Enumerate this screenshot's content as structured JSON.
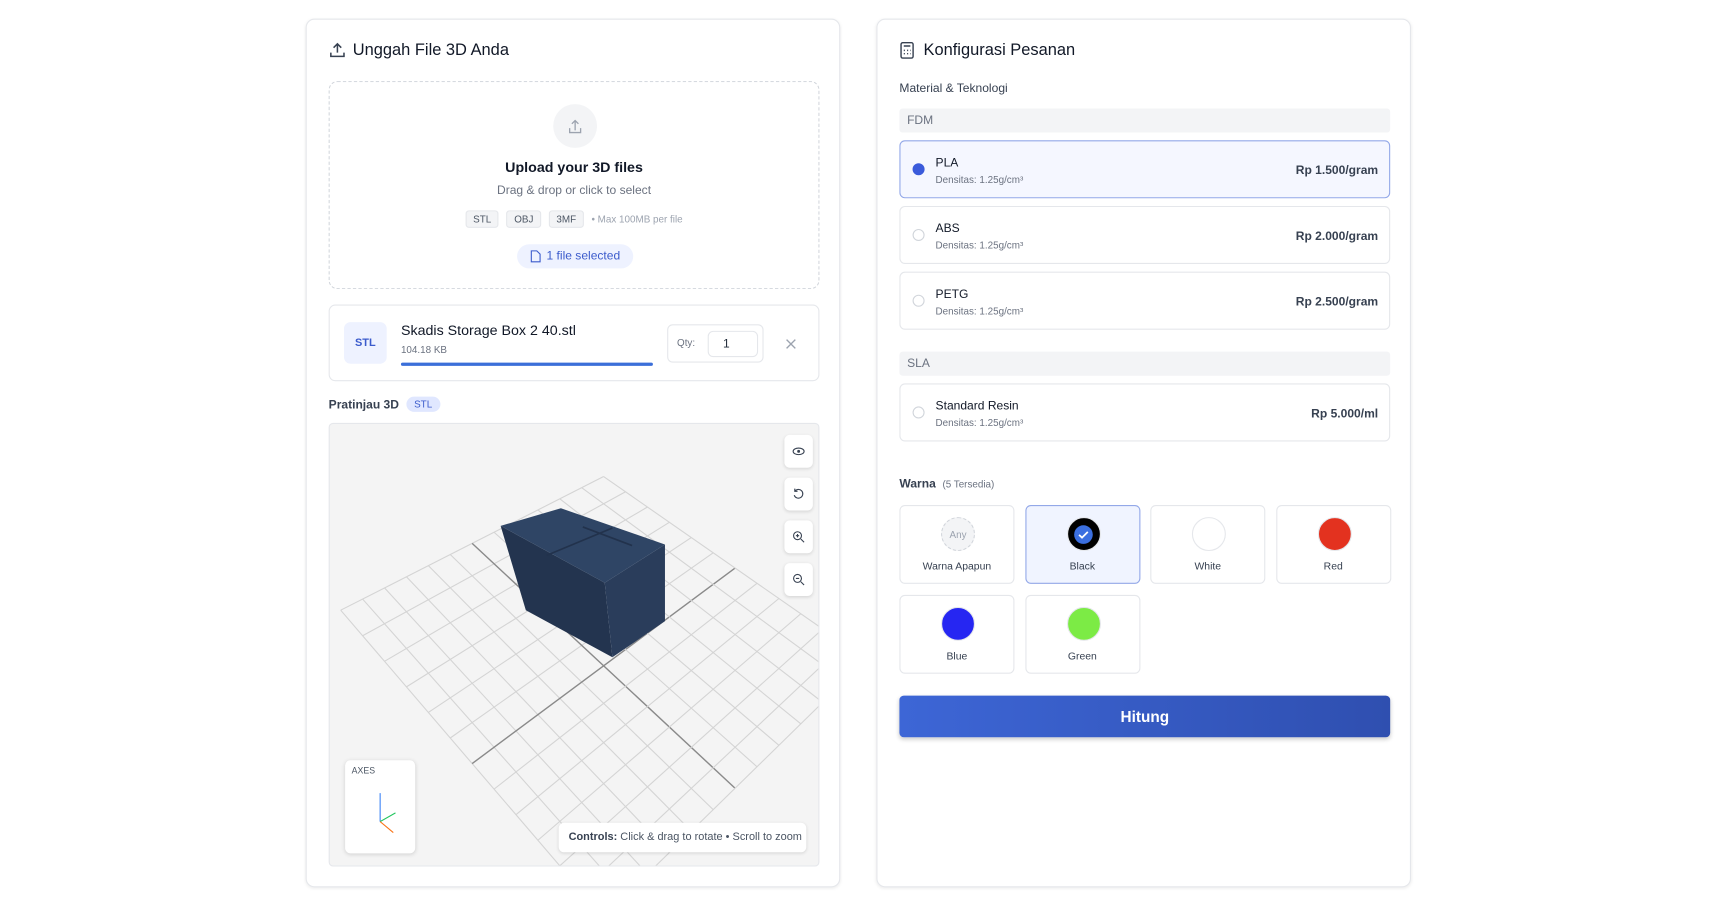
{
  "upload": {
    "title": "Unggah File 3D Anda",
    "dropzone": {
      "heading": "Upload your 3D files",
      "subtitle": "Drag & drop or click to select",
      "formats": [
        "STL",
        "OBJ",
        "3MF"
      ],
      "max_size": "• Max 100MB per file",
      "selected": "1 file selected"
    },
    "file": {
      "badge": "STL",
      "name": "Skadis Storage Box 2 40.stl",
      "size": "104.18 KB",
      "qty_label": "Qty:",
      "qty": 1
    },
    "preview": {
      "label": "Pratinjau 3D",
      "badge": "STL",
      "axes_label": "AXES",
      "controls_label": "Controls:",
      "controls_text": "Click & drag to rotate • Scroll to zoom"
    }
  },
  "config": {
    "title": "Konfigurasi Pesanan",
    "material_label": "Material & Teknologi",
    "groups": [
      {
        "name": "FDM",
        "materials": [
          {
            "name": "PLA",
            "density": "Densitas: 1.25g/cm³",
            "price": "Rp 1.500/gram",
            "selected": true
          },
          {
            "name": "ABS",
            "density": "Densitas: 1.25g/cm³",
            "price": "Rp 2.000/gram",
            "selected": false
          },
          {
            "name": "PETG",
            "density": "Densitas: 1.25g/cm³",
            "price": "Rp 2.500/gram",
            "selected": false
          }
        ]
      },
      {
        "name": "SLA",
        "materials": [
          {
            "name": "Standard Resin",
            "density": "Densitas: 1.25g/cm³",
            "price": "Rp 5.000/ml",
            "selected": false
          }
        ]
      }
    ],
    "color_label": "Warna",
    "color_count": "(5 Tersedia)",
    "colors": [
      {
        "name": "Warna Apapun",
        "swatch": "Any",
        "selected": false
      },
      {
        "name": "Black",
        "color": "#000000",
        "selected": true
      },
      {
        "name": "White",
        "color": "#ffffff",
        "selected": false
      },
      {
        "name": "Red",
        "color": "#e3321f",
        "selected": false
      },
      {
        "name": "Blue",
        "color": "#2626f2",
        "selected": false
      },
      {
        "name": "Green",
        "color": "#7ceb45",
        "selected": false
      }
    ],
    "button": "Hitung"
  }
}
